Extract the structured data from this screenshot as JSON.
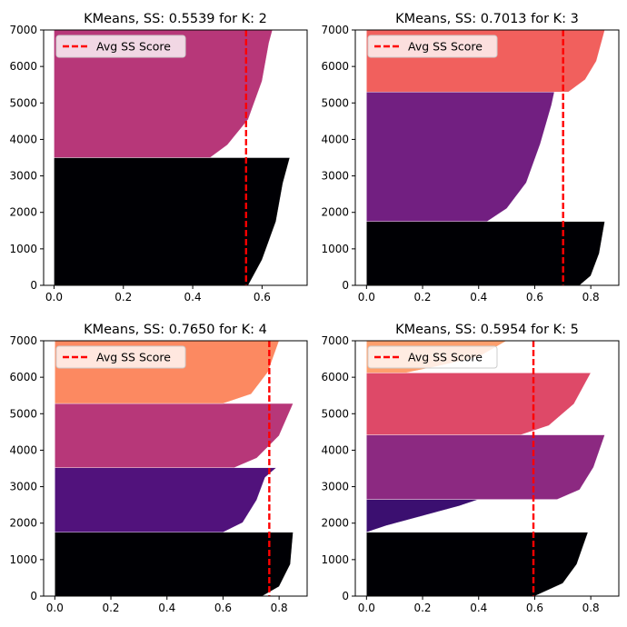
{
  "chart_data": [
    {
      "type": "area",
      "title": "KMeans, SS: 0.5539 for K: 2",
      "avg_score": 0.5539,
      "legend_label": "Avg SS Score",
      "legend_position": "upper-left",
      "xlim": [
        -0.03,
        0.73
      ],
      "ylim": [
        0,
        7000
      ],
      "xticks": [
        "0.0",
        "0.2",
        "0.4",
        "0.6"
      ],
      "yticks": [
        "0",
        "1000",
        "2000",
        "3000",
        "4000",
        "5000",
        "6000",
        "7000"
      ],
      "clusters": [
        {
          "color": "#000004",
          "y0": 0,
          "y1": 3500,
          "profile": [
            [
              0,
              0.56
            ],
            [
              0.2,
              0.6
            ],
            [
              0.5,
              0.64
            ],
            [
              0.8,
              0.66
            ],
            [
              1,
              0.68
            ]
          ]
        },
        {
          "color": "#b73779",
          "y0": 3500,
          "y1": 7000,
          "profile": [
            [
              0,
              0.45
            ],
            [
              0.1,
              0.5
            ],
            [
              0.3,
              0.56
            ],
            [
              0.6,
              0.6
            ],
            [
              0.9,
              0.62
            ],
            [
              1,
              0.63
            ]
          ]
        }
      ]
    },
    {
      "type": "area",
      "title": "KMeans, SS: 0.7013 for K: 3",
      "avg_score": 0.7013,
      "legend_label": "Avg SS Score",
      "legend_position": "upper-left",
      "xlim": [
        -0.04,
        0.9
      ],
      "ylim": [
        0,
        7000
      ],
      "xticks": [
        "0.0",
        "0.2",
        "0.4",
        "0.6",
        "0.8"
      ],
      "yticks": [
        "0",
        "1000",
        "2000",
        "3000",
        "4000",
        "5000",
        "6000",
        "7000"
      ],
      "clusters": [
        {
          "color": "#000004",
          "y0": 0,
          "y1": 1750,
          "profile": [
            [
              0,
              0.76
            ],
            [
              0.15,
              0.8
            ],
            [
              0.5,
              0.83
            ],
            [
              1,
              0.85
            ]
          ]
        },
        {
          "color": "#721f81",
          "y0": 1750,
          "y1": 5300,
          "profile": [
            [
              0,
              0.43
            ],
            [
              0.1,
              0.5
            ],
            [
              0.3,
              0.57
            ],
            [
              0.6,
              0.62
            ],
            [
              0.9,
              0.66
            ],
            [
              1,
              0.67
            ]
          ]
        },
        {
          "color": "#f1605d",
          "y0": 5300,
          "y1": 7000,
          "profile": [
            [
              0,
              0.72
            ],
            [
              0.2,
              0.78
            ],
            [
              0.5,
              0.82
            ],
            [
              1,
              0.85
            ]
          ]
        }
      ]
    },
    {
      "type": "area",
      "title": "KMeans, SS: 0.7650 for K: 4",
      "avg_score": 0.765,
      "legend_label": "Avg SS Score",
      "legend_position": "upper-left",
      "xlim": [
        -0.04,
        0.9
      ],
      "ylim": [
        0,
        7000
      ],
      "xticks": [
        "0.0",
        "0.2",
        "0.4",
        "0.6",
        "0.8"
      ],
      "yticks": [
        "0",
        "1000",
        "2000",
        "3000",
        "4000",
        "5000",
        "6000",
        "7000"
      ],
      "clusters": [
        {
          "color": "#000004",
          "y0": 0,
          "y1": 1750,
          "profile": [
            [
              0,
              0.74
            ],
            [
              0.15,
              0.8
            ],
            [
              0.5,
              0.84
            ],
            [
              1,
              0.85
            ]
          ]
        },
        {
          "color": "#51127c",
          "y0": 1750,
          "y1": 3520,
          "profile": [
            [
              0,
              0.6
            ],
            [
              0.15,
              0.67
            ],
            [
              0.5,
              0.72
            ],
            [
              0.85,
              0.75
            ],
            [
              1,
              0.79
            ]
          ]
        },
        {
          "color": "#b73779",
          "y0": 3520,
          "y1": 5280,
          "profile": [
            [
              0,
              0.64
            ],
            [
              0.15,
              0.72
            ],
            [
              0.5,
              0.8
            ],
            [
              1,
              0.85
            ]
          ]
        },
        {
          "color": "#fc8961",
          "y0": 5280,
          "y1": 7000,
          "profile": [
            [
              0,
              0.6
            ],
            [
              0.15,
              0.7
            ],
            [
              0.5,
              0.76
            ],
            [
              1,
              0.8
            ]
          ]
        }
      ]
    },
    {
      "type": "area",
      "title": "KMeans, SS: 0.5954 for K: 5",
      "avg_score": 0.5954,
      "legend_label": "Avg SS Score",
      "legend_position": "upper-left",
      "xlim": [
        -0.04,
        0.9
      ],
      "ylim": [
        0,
        7000
      ],
      "xticks": [
        "0.0",
        "0.2",
        "0.4",
        "0.6",
        "0.8"
      ],
      "yticks": [
        "0",
        "1000",
        "2000",
        "3000",
        "4000",
        "5000",
        "6000",
        "7000"
      ],
      "clusters": [
        {
          "color": "#000004",
          "y0": 0,
          "y1": 1750,
          "profile": [
            [
              0,
              0.6
            ],
            [
              0.2,
              0.7
            ],
            [
              0.5,
              0.75
            ],
            [
              1,
              0.79
            ]
          ]
        },
        {
          "color": "#3b0f70",
          "y0": 1750,
          "y1": 2650,
          "profile": [
            [
              0,
              0.0
            ],
            [
              0.2,
              0.07
            ],
            [
              0.5,
              0.2
            ],
            [
              0.8,
              0.33
            ],
            [
              1,
              0.4
            ]
          ]
        },
        {
          "color": "#8c2981",
          "y0": 2650,
          "y1": 4420,
          "profile": [
            [
              0,
              0.68
            ],
            [
              0.15,
              0.76
            ],
            [
              0.5,
              0.81
            ],
            [
              1,
              0.85
            ]
          ]
        },
        {
          "color": "#de4968",
          "y0": 4420,
          "y1": 6120,
          "profile": [
            [
              0,
              0.55
            ],
            [
              0.15,
              0.65
            ],
            [
              0.5,
              0.74
            ],
            [
              1,
              0.8
            ]
          ]
        },
        {
          "color": "#fe9f6d",
          "y0": 6120,
          "y1": 7000,
          "profile": [
            [
              0,
              0.14
            ],
            [
              0.2,
              0.25
            ],
            [
              0.5,
              0.4
            ],
            [
              1,
              0.5
            ]
          ]
        }
      ]
    }
  ]
}
